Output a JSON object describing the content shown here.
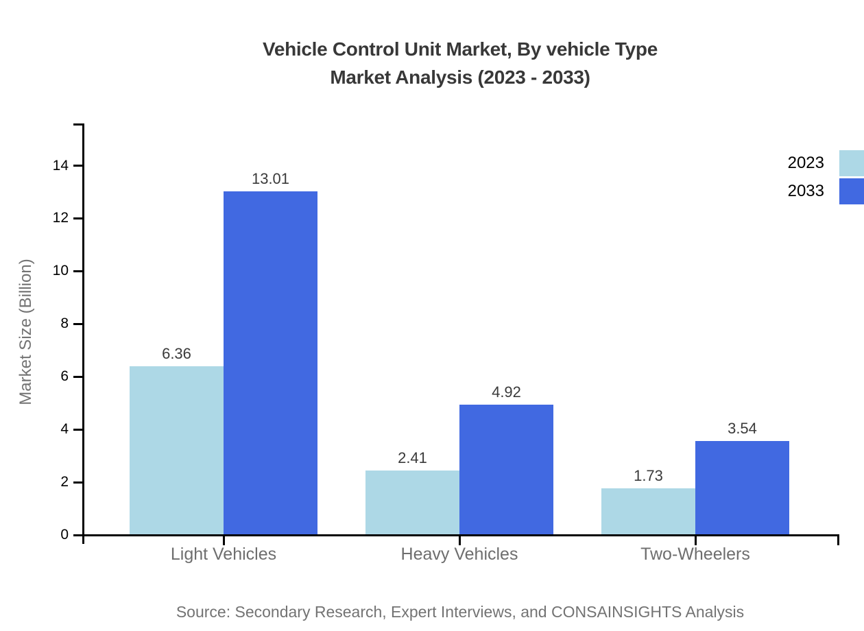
{
  "title": {
    "line1": "Vehicle Control Unit Market, By vehicle Type",
    "line2": "Market Analysis (2023 - 2033)"
  },
  "legend": [
    {
      "label": "2023",
      "color": "#ADD8E6"
    },
    {
      "label": "2033",
      "color": "#4169E1"
    }
  ],
  "source": "Source: Secondary Research, Expert Interviews, and CONSAINSIGHTS Analysis",
  "chart_data": {
    "type": "bar",
    "title": "Vehicle Control Unit Market, By vehicle Type — Market Analysis (2023 - 2033)",
    "categories": [
      "Light Vehicles",
      "Heavy Vehicles",
      "Two-Wheelers"
    ],
    "series": [
      {
        "name": "2023",
        "color": "#ADD8E6",
        "values": [
          6.36,
          2.41,
          1.73
        ]
      },
      {
        "name": "2033",
        "color": "#4169E1",
        "values": [
          13.01,
          4.92,
          3.54
        ]
      }
    ],
    "value_labels": [
      "6.36",
      "13.01",
      "2.41",
      "4.92",
      "1.73",
      "3.54"
    ],
    "xlabel": "",
    "ylabel": "Market Size (Billion)",
    "yticks": [
      0,
      2,
      4,
      6,
      8,
      10,
      12,
      14
    ],
    "ylim": [
      0,
      15.6
    ],
    "grid": false,
    "legend_position": "top-right"
  },
  "colors": {
    "background": "#ffffff",
    "axis": "#000000",
    "title_text": "#383838",
    "muted_text": "#737373",
    "tick_text": "#000000",
    "value_text": "#3a3a3a",
    "series_2023": "#ADD8E6",
    "series_2033": "#4169E1"
  }
}
